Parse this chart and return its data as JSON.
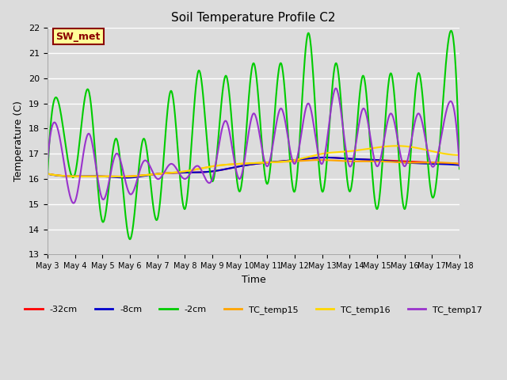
{
  "title": "Soil Temperature Profile C2",
  "xlabel": "Time",
  "ylabel": "Temperature (C)",
  "ylim": [
    13.0,
    22.0
  ],
  "yticks": [
    13.0,
    14.0,
    15.0,
    16.0,
    17.0,
    18.0,
    19.0,
    20.0,
    21.0,
    22.0
  ],
  "x_labels": [
    "May 3",
    "May 4",
    "May 5",
    "May 6",
    "May 7",
    "May 8",
    "May 9",
    "May 10",
    "May 11",
    "May 12",
    "May 13",
    "May 14",
    "May 15",
    "May 16",
    "May 17",
    "May 18"
  ],
  "annotation_text": "SW_met",
  "annotation_bg": "#FFFF99",
  "annotation_border": "#8B0000",
  "annotation_text_color": "#8B0000",
  "colors": {
    "minus32cm": "#FF0000",
    "minus8cm": "#0000CC",
    "minus2cm": "#00CC00",
    "TC_temp15": "#FFA500",
    "TC_temp16": "#FFD700",
    "TC_temp17": "#9933CC"
  },
  "legend_labels": [
    "-32cm",
    "-8cm",
    "-2cm",
    "TC_temp15",
    "TC_temp16",
    "TC_temp17"
  ],
  "background_color": "#DCDCDC",
  "linewidth": 1.5,
  "grid_color": "#FFFFFF",
  "grid_linewidth": 1.0,
  "minus2cm_x": [
    0.0,
    0.5,
    1.0,
    1.5,
    2.0,
    2.5,
    3.0,
    3.5,
    4.0,
    4.5,
    5.0,
    5.5,
    6.0,
    6.5,
    7.0,
    7.5,
    8.0,
    8.5,
    9.0,
    9.5,
    10.0,
    10.5,
    11.0,
    11.5,
    12.0,
    12.5,
    13.0,
    13.5,
    14.0,
    14.5,
    15.0
  ],
  "minus2cm_y": [
    16.2,
    18.5,
    16.2,
    19.5,
    14.3,
    17.6,
    13.6,
    17.6,
    14.4,
    19.5,
    14.8,
    20.3,
    15.9,
    20.1,
    15.5,
    20.6,
    15.8,
    20.6,
    15.5,
    21.8,
    15.5,
    20.6,
    15.5,
    20.1,
    14.8,
    20.2,
    14.8,
    20.2,
    15.3,
    20.5,
    16.4
  ],
  "tc17_x": [
    0.0,
    0.5,
    1.0,
    1.5,
    2.0,
    2.5,
    3.0,
    3.5,
    4.0,
    4.5,
    5.0,
    5.5,
    6.0,
    6.5,
    7.0,
    7.5,
    8.0,
    8.5,
    9.0,
    9.5,
    10.0,
    10.5,
    11.0,
    11.5,
    12.0,
    12.5,
    13.0,
    13.5,
    14.0,
    14.5,
    15.0
  ],
  "tc17_y": [
    16.7,
    17.3,
    15.1,
    17.8,
    15.2,
    17.0,
    15.4,
    16.7,
    16.0,
    16.6,
    16.0,
    16.5,
    16.0,
    18.3,
    16.0,
    18.6,
    16.5,
    18.8,
    16.6,
    19.0,
    16.6,
    19.6,
    16.5,
    18.8,
    16.5,
    18.6,
    16.5,
    18.6,
    16.5,
    18.6,
    16.5
  ],
  "minus32cm_x": [
    0.0,
    1.0,
    2.0,
    3.0,
    4.0,
    5.0,
    6.0,
    7.0,
    8.0,
    9.0,
    10.0,
    11.0,
    12.0,
    13.0,
    14.0,
    15.0
  ],
  "minus32cm_y": [
    16.2,
    16.1,
    16.1,
    16.1,
    16.2,
    16.25,
    16.3,
    16.5,
    16.65,
    16.75,
    16.85,
    16.8,
    16.75,
    16.7,
    16.65,
    16.6
  ],
  "minus8cm_x": [
    0.0,
    1.0,
    2.0,
    3.0,
    4.0,
    5.0,
    6.0,
    7.0,
    8.0,
    9.0,
    10.0,
    11.0,
    12.0,
    13.0,
    14.0,
    15.0
  ],
  "minus8cm_y": [
    16.2,
    16.1,
    16.1,
    16.05,
    16.2,
    16.25,
    16.3,
    16.5,
    16.65,
    16.75,
    16.85,
    16.8,
    16.75,
    16.65,
    16.6,
    16.55
  ],
  "tc15_x": [
    0.0,
    1.0,
    2.0,
    3.0,
    4.0,
    5.0,
    6.0,
    7.0,
    8.0,
    9.0,
    10.0,
    11.0,
    12.0,
    13.0,
    14.0,
    15.0
  ],
  "tc15_y": [
    16.2,
    16.1,
    16.1,
    16.1,
    16.2,
    16.3,
    16.5,
    16.6,
    16.65,
    16.7,
    16.75,
    16.7,
    16.7,
    16.65,
    16.65,
    16.6
  ],
  "tc16_x": [
    0.0,
    1.0,
    2.0,
    3.0,
    4.0,
    5.0,
    6.0,
    7.0,
    8.0,
    9.0,
    10.0,
    11.0,
    12.0,
    13.0,
    14.0,
    15.0
  ],
  "tc16_y": [
    16.2,
    16.1,
    16.1,
    16.1,
    16.2,
    16.3,
    16.5,
    16.6,
    16.65,
    16.75,
    17.0,
    17.1,
    17.25,
    17.3,
    17.1,
    16.95
  ]
}
